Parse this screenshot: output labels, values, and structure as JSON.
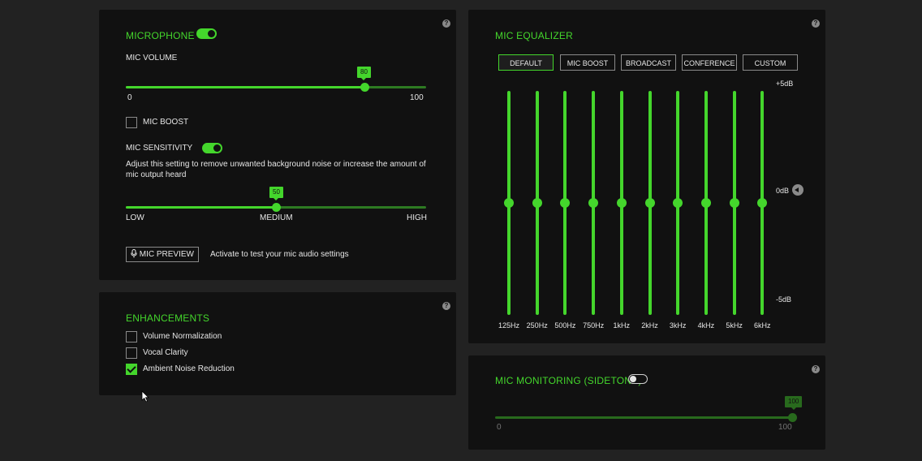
{
  "microphone": {
    "title": "MICROPHONE",
    "toggle_on": true,
    "volume_label": "MIC VOLUME",
    "volume_value": "80",
    "volume_min": "0",
    "volume_max": "100",
    "mic_boost_label": "MIC BOOST",
    "mic_boost_checked": false,
    "sensitivity_label": "MIC SENSITIVITY",
    "sensitivity_toggle_on": true,
    "sensitivity_desc": "Adjust this setting to remove unwanted background noise or increase the amount of mic output heard",
    "sensitivity_value": "50",
    "sensitivity_low": "LOW",
    "sensitivity_medium": "MEDIUM",
    "sensitivity_high": "HIGH",
    "preview_button": "MIC PREVIEW",
    "preview_desc": "Activate to test your mic audio settings"
  },
  "enhancements": {
    "title": "ENHANCEMENTS",
    "items": [
      {
        "label": "Volume Normalization",
        "checked": false
      },
      {
        "label": "Vocal Clarity",
        "checked": false
      },
      {
        "label": "Ambient Noise Reduction",
        "checked": true
      }
    ]
  },
  "equalizer": {
    "title": "MIC EQUALIZER",
    "presets": [
      "DEFAULT",
      "MIC BOOST",
      "BROADCAST",
      "CONFERENCE",
      "CUSTOM"
    ],
    "active_preset": "DEFAULT",
    "scale_top": "+5dB",
    "scale_mid": "0dB",
    "scale_bottom": "-5dB",
    "bands": [
      {
        "freq": "125Hz",
        "gain_db": 0
      },
      {
        "freq": "250Hz",
        "gain_db": 0
      },
      {
        "freq": "500Hz",
        "gain_db": 0
      },
      {
        "freq": "750Hz",
        "gain_db": 0
      },
      {
        "freq": "1kHz",
        "gain_db": 0
      },
      {
        "freq": "2kHz",
        "gain_db": 0
      },
      {
        "freq": "3kHz",
        "gain_db": 0
      },
      {
        "freq": "4kHz",
        "gain_db": 0
      },
      {
        "freq": "5kHz",
        "gain_db": 0
      },
      {
        "freq": "6kHz",
        "gain_db": 0
      }
    ]
  },
  "monitoring": {
    "title": "MIC MONITORING (SIDETONE)",
    "toggle_on": false,
    "value": "100",
    "min": "0",
    "max": "100"
  },
  "help_glyph": "?",
  "colors": {
    "accent": "#44d62c",
    "panel": "#111111",
    "background": "#222222"
  },
  "icons": {
    "help": "help-icon",
    "mic": "mic-icon",
    "reset": "reset-icon",
    "cursor": "cursor-icon"
  }
}
